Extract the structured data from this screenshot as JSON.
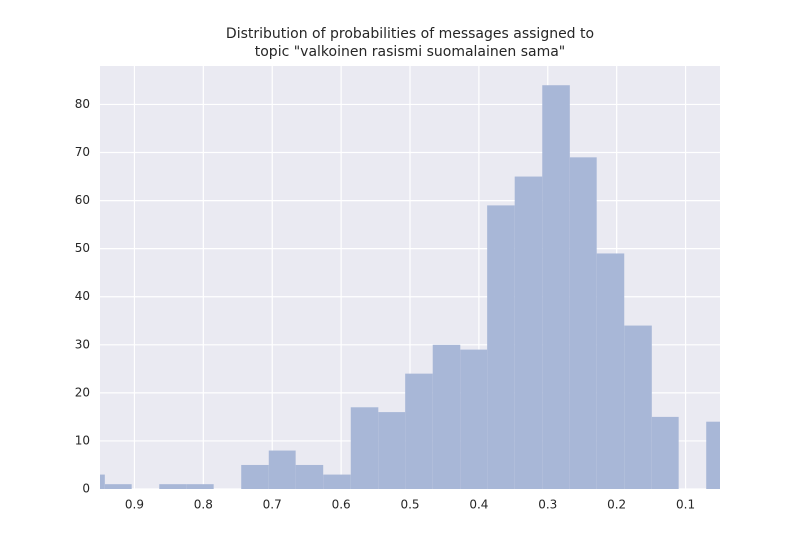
{
  "chart_data": {
    "type": "histogram",
    "title": [
      "Distribution of probabilities of messages assigned to",
      "topic \"valkoinen rasismi suomalainen sama\""
    ],
    "bins": [
      0.983,
      0.943,
      0.904,
      0.864,
      0.824,
      0.785,
      0.745,
      0.705,
      0.666,
      0.626,
      0.586,
      0.546,
      0.507,
      0.467,
      0.427,
      0.388,
      0.348,
      0.308,
      0.268,
      0.229,
      0.189,
      0.149,
      0.11,
      0.07,
      0.03
    ],
    "values": [
      3,
      1,
      0,
      1,
      1,
      0,
      5,
      8,
      5,
      3,
      17,
      16,
      24,
      30,
      29,
      59,
      65,
      84,
      69,
      49,
      34,
      15,
      0,
      14
    ],
    "color": "#a8b7d7",
    "xlim": [
      0.95,
      0.05
    ],
    "xticks": [
      0.9,
      0.8,
      0.7,
      0.6,
      0.5,
      0.4,
      0.3,
      0.2,
      0.1
    ],
    "ylim": [
      0,
      88
    ],
    "yticks": [
      0,
      10,
      20,
      30,
      40,
      50,
      60,
      70,
      80
    ],
    "grid": true
  }
}
